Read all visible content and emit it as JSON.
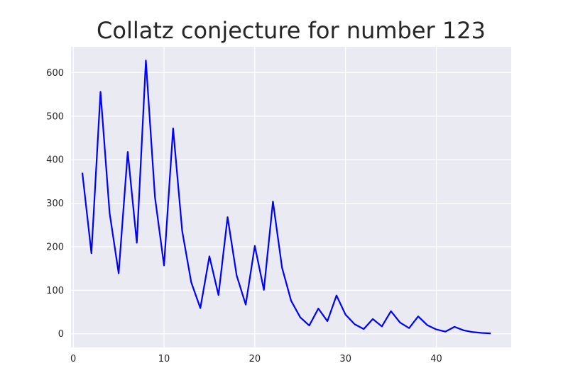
{
  "chart_data": {
    "type": "line",
    "title": "Collatz conjecture for number 123",
    "xlabel": "",
    "ylabel": "",
    "xlim": [
      -0.25,
      48.25
    ],
    "ylim": [
      -31.4,
      659.4
    ],
    "xticks": [
      0,
      10,
      20,
      30,
      40
    ],
    "yticks": [
      0,
      100,
      200,
      300,
      400,
      500,
      600
    ],
    "grid": true,
    "legend": "none",
    "line_color": "#0000ff",
    "background_color": "#eaeaf2",
    "series": [
      {
        "x": [
          1,
          2,
          3,
          4,
          5,
          6,
          7,
          8,
          9,
          10,
          11,
          12,
          13,
          14,
          15,
          16,
          17,
          18,
          19,
          20,
          21,
          22,
          23,
          24,
          25,
          26,
          27,
          28,
          29,
          30,
          31,
          32,
          33,
          34,
          35,
          36,
          37,
          38,
          39,
          40,
          41,
          42,
          43,
          44,
          45,
          46
        ],
        "values": [
          370,
          185,
          556,
          278,
          139,
          418,
          209,
          628,
          314,
          157,
          472,
          236,
          118,
          59,
          178,
          89,
          268,
          134,
          67,
          202,
          101,
          304,
          152,
          76,
          38,
          19,
          58,
          29,
          88,
          44,
          22,
          11,
          34,
          17,
          52,
          26,
          13,
          40,
          20,
          10,
          5,
          16,
          8,
          4,
          2,
          1
        ]
      }
    ]
  }
}
